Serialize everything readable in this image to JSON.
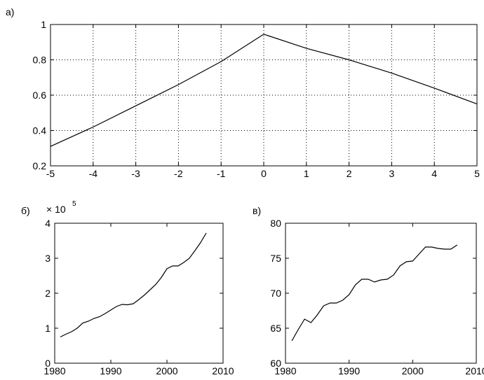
{
  "panel_labels": [
    "а)",
    "б)",
    "в)"
  ],
  "multiplier": {
    "base": "× 10",
    "exp": "5"
  },
  "chart_data": [
    {
      "type": "line",
      "label": "а)",
      "xlim": [
        -5,
        5
      ],
      "ylim": [
        0.2,
        1
      ],
      "grid": true,
      "xticks": [
        -5,
        -4,
        -3,
        -2,
        -1,
        0,
        1,
        2,
        3,
        4,
        5
      ],
      "yticks": [
        0.2,
        0.4,
        0.6,
        0.8,
        1
      ],
      "ytick_labels": [
        "0.2",
        "0.4",
        "0.6",
        "0.8",
        "1"
      ],
      "x": [
        -5,
        -4,
        -3,
        -2,
        -1,
        0,
        1,
        2,
        3,
        4,
        5
      ],
      "y": [
        0.31,
        0.42,
        0.54,
        0.66,
        0.79,
        0.945,
        0.865,
        0.8,
        0.725,
        0.64,
        0.55
      ]
    },
    {
      "type": "line",
      "label": "б)",
      "xlim": [
        1980,
        2010
      ],
      "ylim": [
        0,
        4
      ],
      "grid": false,
      "xticks": [
        1980,
        1990,
        2000,
        2010
      ],
      "yticks": [
        0,
        1,
        2,
        3,
        4
      ],
      "ytick_labels": [
        "0",
        "1",
        "2",
        "3",
        "4"
      ],
      "x": [
        1981,
        1982,
        1983,
        1984,
        1985,
        1986,
        1987,
        1988,
        1989,
        1990,
        1991,
        1992,
        1993,
        1994,
        1995,
        1996,
        1997,
        1998,
        1999,
        2000,
        2001,
        2002,
        2003,
        2004,
        2005,
        2006,
        2007
      ],
      "y": [
        0.75,
        0.83,
        0.9,
        1.0,
        1.15,
        1.2,
        1.28,
        1.33,
        1.42,
        1.52,
        1.62,
        1.68,
        1.67,
        1.7,
        1.82,
        1.95,
        2.1,
        2.25,
        2.45,
        2.7,
        2.78,
        2.78,
        2.88,
        3.0,
        3.22,
        3.45,
        3.72
      ]
    },
    {
      "type": "line",
      "label": "в)",
      "xlim": [
        1980,
        2010
      ],
      "ylim": [
        60,
        80
      ],
      "grid": false,
      "xticks": [
        1980,
        1990,
        2000,
        2010
      ],
      "yticks": [
        60,
        65,
        70,
        75,
        80
      ],
      "ytick_labels": [
        "60",
        "65",
        "70",
        "75",
        "80"
      ],
      "x": [
        1981,
        1982,
        1983,
        1984,
        1985,
        1986,
        1987,
        1988,
        1989,
        1990,
        1991,
        1992,
        1993,
        1994,
        1995,
        1996,
        1997,
        1998,
        1999,
        2000,
        2001,
        2002,
        2003,
        2004,
        2005,
        2006,
        2007
      ],
      "y": [
        63.2,
        64.8,
        66.3,
        65.8,
        66.9,
        68.2,
        68.6,
        68.6,
        69.0,
        69.8,
        71.2,
        72.0,
        72.0,
        71.6,
        71.9,
        72.0,
        72.6,
        73.9,
        74.5,
        74.6,
        75.6,
        76.6,
        76.6,
        76.4,
        76.3,
        76.3,
        76.9
      ]
    }
  ]
}
